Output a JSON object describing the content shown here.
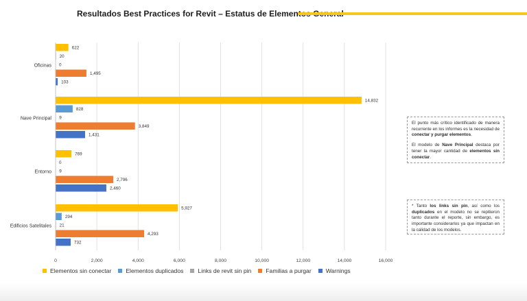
{
  "header": {
    "title": "Resultados Best Practices for Revit – Estatus de Elementos General"
  },
  "colors": {
    "title_bar": "#f7c520",
    "grid": "#d9d9d9"
  },
  "notes": [
    {
      "paragraphs": [
        [
          {
            "t": "El punto más crítico identificado de manera recurrente en los informes es la necesidad de ",
            "b": false
          },
          {
            "t": "conectar y purgar elementos",
            "b": true
          },
          {
            "t": ".",
            "b": false
          }
        ],
        [
          {
            "t": "El modelo de ",
            "b": false
          },
          {
            "t": "Nave Principal",
            "b": true
          },
          {
            "t": " destaca por tener la mayor cantidad de ",
            "b": false
          },
          {
            "t": "elementos sin conectar",
            "b": true
          },
          {
            "t": ".",
            "b": false
          }
        ]
      ]
    },
    {
      "paragraphs": [
        [
          {
            "t": "* Tanto ",
            "b": false
          },
          {
            "t": "los links sin pin",
            "b": true
          },
          {
            "t": ", así como los ",
            "b": false
          },
          {
            "t": "duplicados",
            "b": true
          },
          {
            "t": " en el modelo no se repitieron tanto durante el reporte, sin embargo, es importante considerarlos ya que impactan en la calidad de los modelos.",
            "b": false
          }
        ]
      ]
    }
  ],
  "chart_data": {
    "type": "bar",
    "orientation": "horizontal",
    "title": "Resultados Best Practices for Revit – Estatus de Elementos General",
    "categories": [
      "Oficinas",
      "Nave Principal",
      "Entorno",
      "Edificios Satelitales"
    ],
    "series": [
      {
        "name": "Elementos sin conectar",
        "color": "#ffc000",
        "values": [
          622,
          14832,
          769,
          5927
        ],
        "labels": [
          "622",
          "14,832",
          "769",
          "5,927"
        ]
      },
      {
        "name": "Elementos duplicados",
        "color": "#5b9bd5",
        "values": [
          20,
          828,
          0,
          294
        ],
        "labels": [
          "20",
          "828",
          "0",
          "294"
        ]
      },
      {
        "name": "Links de revit sin pin",
        "color": "#a5a5a5",
        "values": [
          0,
          9,
          9,
          21
        ],
        "labels": [
          "0",
          "9",
          "9",
          "21"
        ]
      },
      {
        "name": "Familias a purgar",
        "color": "#ed7d31",
        "values": [
          1495,
          3849,
          2796,
          4293
        ],
        "labels": [
          "1,495",
          "3,849",
          "2,796",
          "4,293"
        ]
      },
      {
        "name": "Warnings",
        "color": "#4472c4",
        "values": [
          103,
          1431,
          2460,
          732
        ],
        "labels": [
          "103",
          "1,431",
          "2,460",
          "732"
        ]
      }
    ],
    "xlim": [
      0,
      16000
    ],
    "xticks": [
      0,
      2000,
      4000,
      6000,
      8000,
      10000,
      12000,
      14000,
      16000
    ],
    "xtick_labels": [
      "0",
      "2,000",
      "4,000",
      "6,000",
      "8,000",
      "10,000",
      "12,000",
      "14,000",
      "16,000"
    ],
    "grid": true,
    "legend": "bottom"
  }
}
